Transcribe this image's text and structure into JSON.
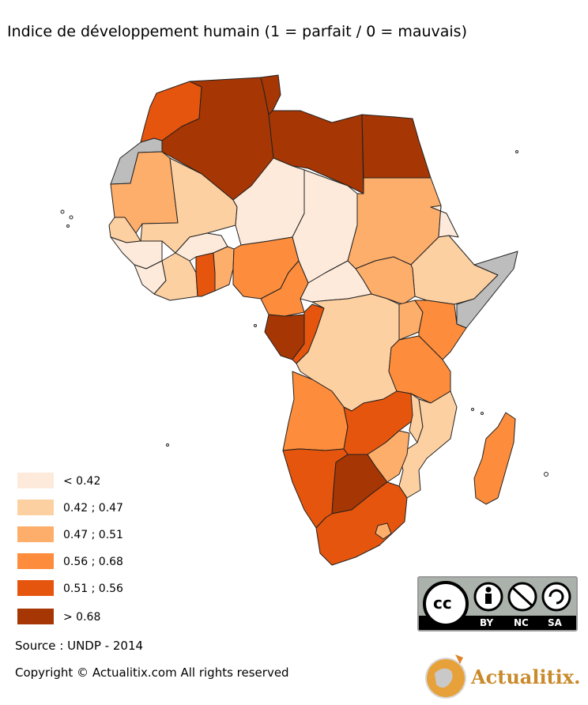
{
  "title": "Indice de développement humain (1 = parfait / 0 = mauvais)",
  "colors": {
    "c1": "#fdeadb",
    "c2": "#fdd0a2",
    "c3": "#fdae6b",
    "c4": "#fd8d3c",
    "c5": "#e6550d",
    "c6": "#a63603",
    "nodata": "#bdbdbd",
    "border": "#222222"
  },
  "legend": [
    {
      "label": "< 0.42",
      "color": "#fdeadb"
    },
    {
      "label": "0.42 ; 0.47",
      "color": "#fdd0a2"
    },
    {
      "label": "0.47 ; 0.51",
      "color": "#fdae6b"
    },
    {
      "label": "0.56 ; 0.68",
      "color": "#fd8d3c"
    },
    {
      "label": "0.51 ; 0.56",
      "color": "#e6550d"
    },
    {
      "label": "> 0.68",
      "color": "#a63603"
    }
  ],
  "source": "Source : UNDP - 2014",
  "copyright": "Copyright © Actualitix.com All rights reserved",
  "license": {
    "by": "BY",
    "nc": "NC",
    "sa": "SA",
    "cc": "cc"
  },
  "brand": {
    "name": "Actualitix."
  }
}
